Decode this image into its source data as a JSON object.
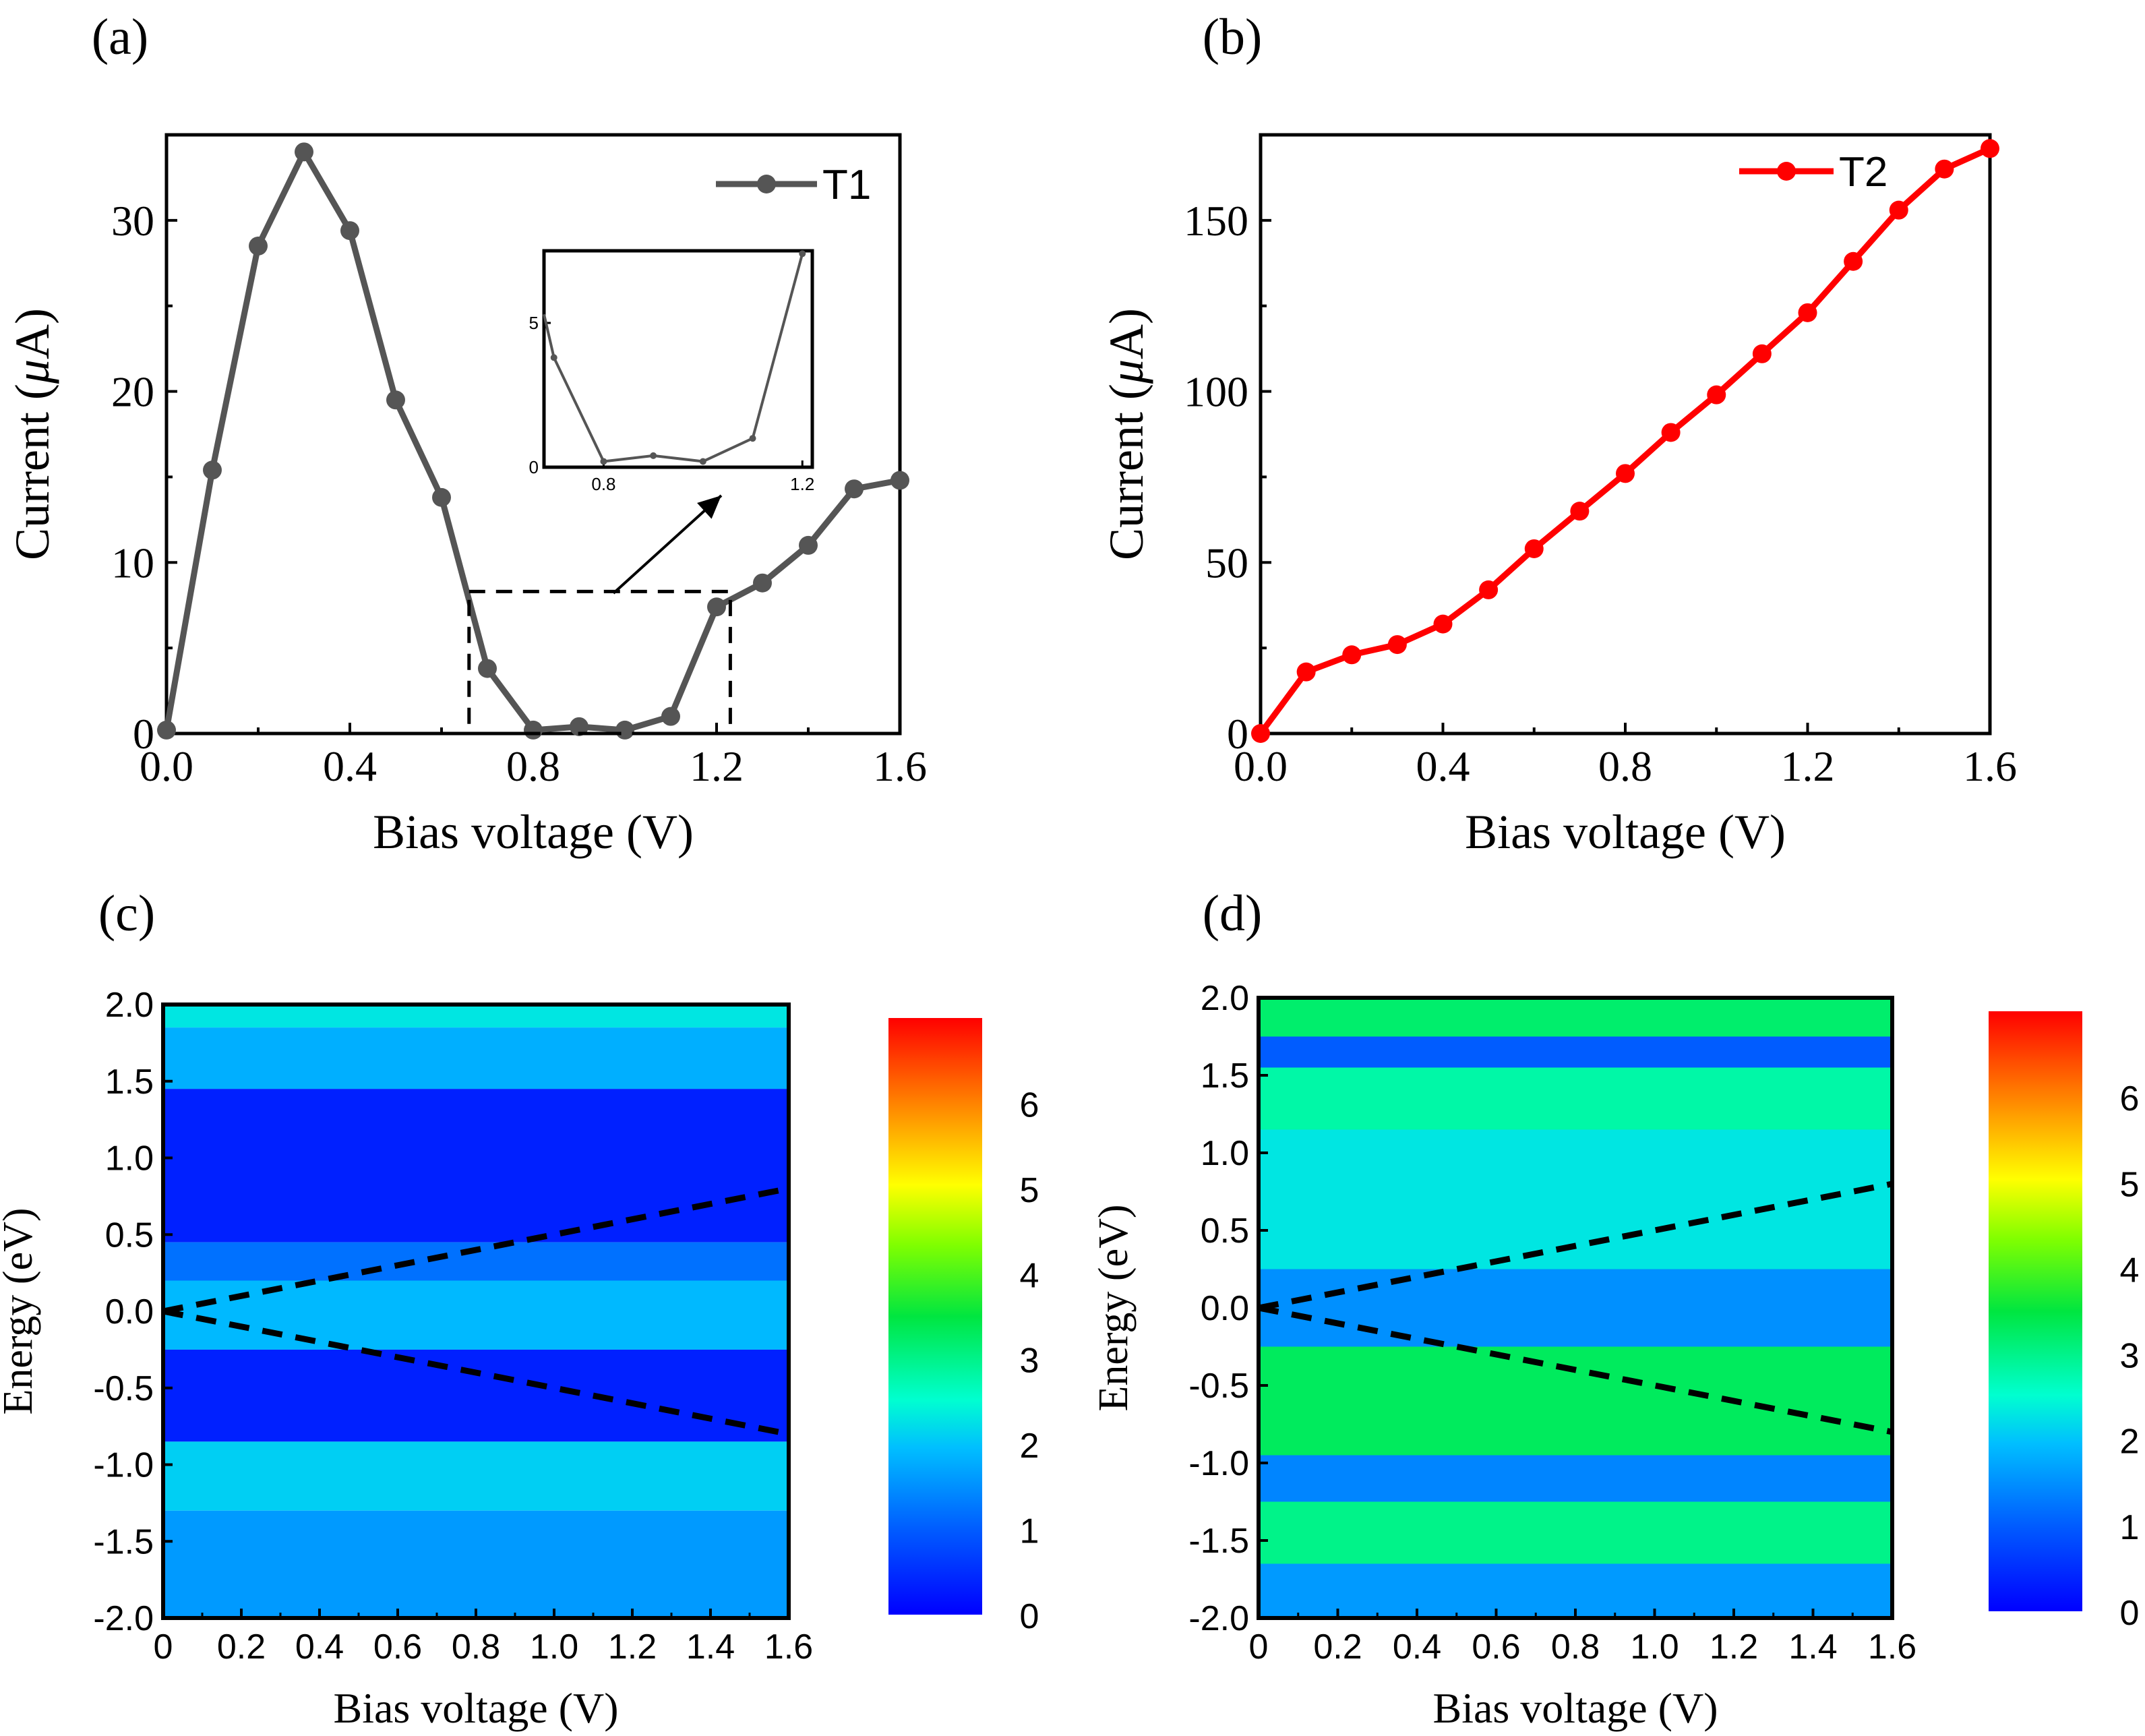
{
  "colors": {
    "t1": "#555555",
    "t2": "#ff0000",
    "axis": "#000000",
    "dashed": "#000000"
  },
  "chart_data": [
    {
      "id": "a",
      "type": "line",
      "panel_label": "(a)",
      "xlabel": "Bias voltage (V)",
      "ylabel_main": "Current (",
      "ylabel_mu": "μ",
      "ylabel_unit": "A)",
      "xlim": [
        0,
        1.6
      ],
      "ylim": [
        0,
        35
      ],
      "xticks": [
        0.0,
        0.4,
        0.8,
        1.2,
        1.6
      ],
      "xtick_labels": [
        "0.0",
        "0.4",
        "0.8",
        "1.2",
        "1.6"
      ],
      "yticks": [
        0,
        10,
        20,
        30
      ],
      "ytick_labels": [
        "0",
        "10",
        "20",
        "30"
      ],
      "series": [
        {
          "name": "T1",
          "x": [
            0.0,
            0.1,
            0.2,
            0.3,
            0.4,
            0.5,
            0.6,
            0.7,
            0.8,
            0.9,
            1.0,
            1.1,
            1.2,
            1.3,
            1.4,
            1.5,
            1.6
          ],
          "values": [
            0.2,
            15.4,
            28.5,
            34.0,
            29.4,
            19.5,
            13.8,
            3.8,
            0.2,
            0.4,
            0.2,
            1.0,
            7.4,
            8.8,
            11.0,
            14.3,
            14.8
          ]
        }
      ],
      "legend_position": "top-right",
      "zoom_region": {
        "xlim": [
          0.66,
          1.23
        ],
        "ylim": [
          0,
          8.3
        ]
      },
      "inset": {
        "xlim": [
          0.68,
          1.22
        ],
        "ylim": [
          0,
          7.5
        ],
        "xticks": [
          0.8,
          1.2
        ],
        "xtick_labels": [
          "0.8",
          "1.2"
        ],
        "yticks": [
          0,
          5
        ],
        "ytick_labels": [
          "0",
          "5"
        ],
        "x": [
          0.68,
          0.7,
          0.8,
          0.9,
          1.0,
          1.1,
          1.2
        ],
        "values": [
          5.3,
          3.8,
          0.2,
          0.4,
          0.2,
          1.0,
          7.4
        ]
      }
    },
    {
      "id": "b",
      "type": "line",
      "panel_label": "(b)",
      "xlabel": "Bias voltage (V)",
      "ylabel_main": "Current (",
      "ylabel_mu": "μ",
      "ylabel_unit": "A)",
      "xlim": [
        0,
        1.6
      ],
      "ylim": [
        0,
        175
      ],
      "xticks": [
        0.0,
        0.4,
        0.8,
        1.2,
        1.6
      ],
      "xtick_labels": [
        "0.0",
        "0.4",
        "0.8",
        "1.2",
        "1.6"
      ],
      "yticks": [
        0,
        50,
        100,
        150
      ],
      "ytick_labels": [
        "0",
        "50",
        "100",
        "150"
      ],
      "series": [
        {
          "name": "T2",
          "x": [
            0.0,
            0.1,
            0.2,
            0.3,
            0.4,
            0.5,
            0.6,
            0.7,
            0.8,
            0.9,
            1.0,
            1.1,
            1.2,
            1.3,
            1.4,
            1.5,
            1.6
          ],
          "values": [
            0,
            18,
            23,
            26,
            32,
            42,
            54,
            65,
            76,
            88,
            99,
            111,
            123,
            138,
            153,
            165,
            171
          ]
        }
      ],
      "legend_position": "top-right"
    },
    {
      "id": "c",
      "type": "heatmap",
      "panel_label": "(c)",
      "xlabel": "Bias voltage (V)",
      "ylabel": "Energy (eV)",
      "xlim": [
        0,
        1.6
      ],
      "ylim": [
        -2.0,
        2.0
      ],
      "xticks": [
        0,
        0.2,
        0.4,
        0.6,
        0.8,
        1.0,
        1.2,
        1.4,
        1.6
      ],
      "xtick_labels": [
        "0",
        "0.2",
        "0.4",
        "0.6",
        "0.8",
        "1.0",
        "1.2",
        "1.4",
        "1.6"
      ],
      "yticks": [
        2.0,
        1.5,
        1.0,
        0.5,
        0.0,
        -0.5,
        -1.0,
        -1.5,
        -2.0
      ],
      "ytick_labels": [
        "2.0",
        "1.5",
        "1.0",
        "0.5",
        "0.0",
        "-0.5",
        "-1.0",
        "-1.5",
        "-2.0"
      ],
      "colorbar": {
        "range": [
          0,
          7
        ],
        "ticks": [
          0,
          1,
          2,
          3,
          4,
          5,
          6
        ],
        "tick_labels": [
          "0",
          "1",
          "2",
          "3",
          "4",
          "5",
          "6"
        ]
      },
      "bias_window_lines": [
        {
          "x": [
            0,
            1.6
          ],
          "y": [
            0,
            0.8
          ]
        },
        {
          "x": [
            0,
            1.6
          ],
          "y": [
            0,
            -0.8
          ]
        }
      ],
      "bands": [
        {
          "e0": 1.85,
          "e1": 2.0,
          "value": 2.3
        },
        {
          "e0": 1.45,
          "e1": 1.85,
          "value": 1.8
        },
        {
          "e0": 0.45,
          "e1": 1.45,
          "value": 0.35
        },
        {
          "e0": 0.2,
          "e1": 0.45,
          "value": 1.2
        },
        {
          "e0": -0.25,
          "e1": 0.2,
          "value": 1.9
        },
        {
          "e0": -0.85,
          "e1": -0.25,
          "value": 0.35
        },
        {
          "e0": -1.3,
          "e1": -0.85,
          "value": 2.1
        },
        {
          "e0": -2.0,
          "e1": -1.3,
          "value": 1.6
        }
      ]
    },
    {
      "id": "d",
      "type": "heatmap",
      "panel_label": "(d)",
      "xlabel": "Bias voltage (V)",
      "ylabel": "Energy (eV)",
      "xlim": [
        0,
        1.6
      ],
      "ylim": [
        -2.0,
        2.0
      ],
      "xticks": [
        0,
        0.2,
        0.4,
        0.6,
        0.8,
        1.0,
        1.2,
        1.4,
        1.6
      ],
      "xtick_labels": [
        "0",
        "0.2",
        "0.4",
        "0.6",
        "0.8",
        "1.0",
        "1.2",
        "1.4",
        "1.6"
      ],
      "yticks": [
        2.0,
        1.5,
        1.0,
        0.5,
        0.0,
        -0.5,
        -1.0,
        -1.5,
        -2.0
      ],
      "ytick_labels": [
        "2.0",
        "1.5",
        "1.0",
        "0.5",
        "0.0",
        "-0.5",
        "-1.0",
        "-1.5",
        "-2.0"
      ],
      "colorbar": {
        "range": [
          0,
          7
        ],
        "ticks": [
          0,
          1,
          2,
          3,
          4,
          5,
          6
        ],
        "tick_labels": [
          "0",
          "1",
          "2",
          "3",
          "4",
          "5",
          "6"
        ]
      },
      "bias_window_lines": [
        {
          "x": [
            0,
            1.6
          ],
          "y": [
            0,
            0.8
          ]
        },
        {
          "x": [
            0,
            1.6
          ],
          "y": [
            0,
            -0.8
          ]
        }
      ],
      "bands": [
        {
          "e0": 1.75,
          "e1": 2.0,
          "value": 3.2
        },
        {
          "e0": 1.55,
          "e1": 1.75,
          "value": 1.0
        },
        {
          "e0": 1.15,
          "e1": 1.55,
          "value": 2.8
        },
        {
          "e0": 0.25,
          "e1": 1.15,
          "value": 2.3
        },
        {
          "e0": -0.25,
          "e1": 0.25,
          "value": 1.5
        },
        {
          "e0": -0.95,
          "e1": -0.25,
          "value": 3.3
        },
        {
          "e0": -1.25,
          "e1": -0.95,
          "value": 1.4
        },
        {
          "e0": -1.65,
          "e1": -1.25,
          "value": 3.0
        },
        {
          "e0": -2.0,
          "e1": -1.65,
          "value": 1.6
        }
      ]
    }
  ]
}
